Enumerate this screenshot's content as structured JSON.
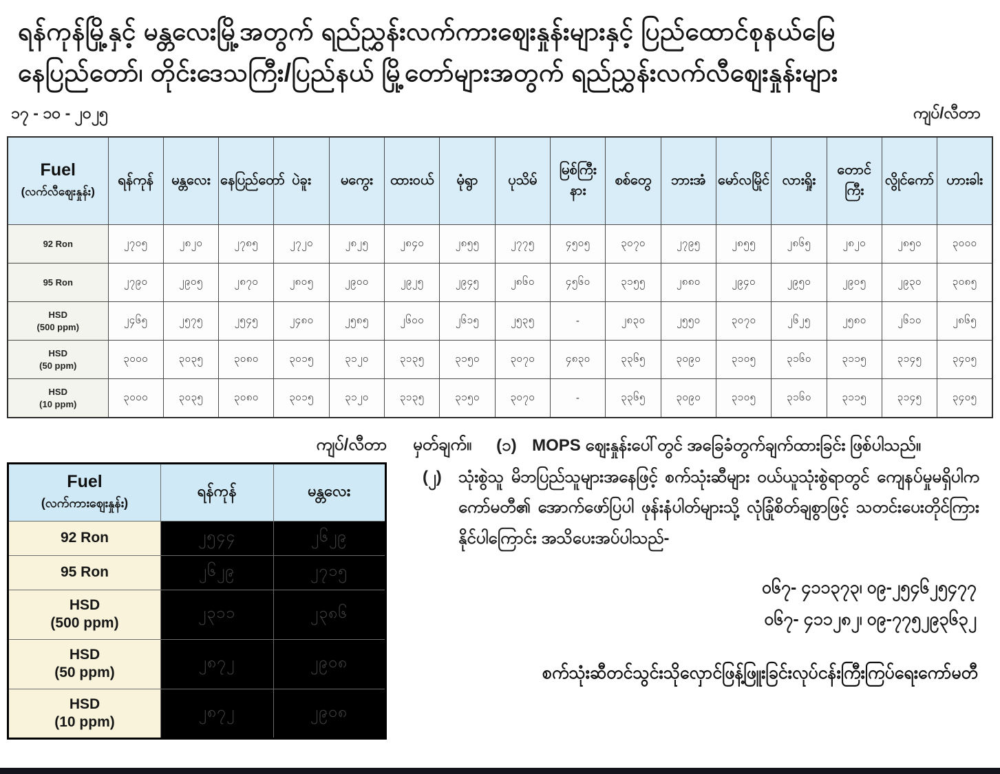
{
  "title": {
    "line1": "ရန်ကုန်မြို့နှင့် မန္တလေးမြို့အတွက် ရည်ညွှန်းလက်ကားဈေးနှုန်းများနှင့် ပြည်ထောင်စုနယ်မြေ",
    "line2": "နေပြည်တော်၊ တိုင်းဒေသကြီး/ပြည်နယ် မြို့တော်များအတွက် ရည်ညွှန်းလက်လီဈေးနှုန်းများ"
  },
  "date": "၁၇ - ၁၀ - ၂၀၂၅",
  "unit_label_top": "ကျပ်/လီတာ",
  "unit_label_bottom": "ကျပ်/လီတာ",
  "retail_table": {
    "fuel_header": {
      "title": "Fuel",
      "subtitle": "(လက်လီဈေးနှုန်း)"
    },
    "cities": [
      "ရန်ကုန်",
      "မန္တလေး",
      "နေပြည်တော်",
      "ပဲခူး",
      "မကွေး",
      "ထားဝယ်",
      "မုံရွာ",
      "ပုသိမ်",
      "မြစ်ကြီးနား",
      "စစ်တွေ",
      "ဘားအံ",
      "မော်လမြိုင်",
      "လားရှိုး",
      "တောင်ကြီး",
      "လွိုင်ကော်",
      "ဟားခါး"
    ],
    "rows": [
      {
        "label_line1": "92 Ron",
        "label_line2": "",
        "values": [
          "၂၇၀၅",
          "၂၈၂၀",
          "၂၇၈၅",
          "၂၇၂၀",
          "၂၈၂၅",
          "၂၈၄၀",
          "၂၈၅၅",
          "၂၇၇၅",
          "၄၅၀၅",
          "၃၀၇၀",
          "၂၇၉၅",
          "၂၈၅၅",
          "၂၈၆၅",
          "၂၈၂၀",
          "၂၈၅၀",
          "၃၀၀၀"
        ],
        "values_numeric": [
          2705,
          2820,
          2785,
          2720,
          2825,
          2840,
          2855,
          2775,
          4505,
          3070,
          2795,
          2855,
          2865,
          2820,
          2850,
          3000
        ]
      },
      {
        "label_line1": "95 Ron",
        "label_line2": "",
        "values": [
          "၂၇၉၀",
          "၂၉၀၅",
          "၂၈၇၀",
          "၂၈၀၅",
          "၂၉၀၀",
          "၂၉၂၅",
          "၂၉၄၅",
          "၂၈၆၀",
          "၄၅၆၀",
          "၃၁၅၅",
          "၂၈၈၀",
          "၂၉၄၀",
          "၂၉၅၀",
          "၂၉၀၅",
          "၂၉၃၀",
          "၃၀၈၅"
        ],
        "values_numeric": [
          2790,
          2905,
          2870,
          2805,
          2900,
          2925,
          2945,
          2860,
          4560,
          3155,
          2880,
          2940,
          2950,
          2905,
          2930,
          3085
        ]
      },
      {
        "label_line1": "HSD",
        "label_line2": "(500 ppm)",
        "values": [
          "၂၄၆၅",
          "၂၅၇၅",
          "၂၅၄၅",
          "၂၄၈၀",
          "၂၅၈၅",
          "၂၆၀၀",
          "၂၆၁၅",
          "၂၅၃၅",
          "-",
          "၂၈၃၀",
          "၂၅၅၀",
          "၃၀၇၀",
          "၂၆၂၅",
          "၂၅၈၀",
          "၂၆၁၀",
          "၂၈၆၅"
        ],
        "values_numeric": [
          2465,
          2575,
          2545,
          2480,
          2585,
          2600,
          2615,
          2535,
          null,
          2830,
          2550,
          3070,
          2625,
          2580,
          2610,
          2865
        ]
      },
      {
        "label_line1": "HSD",
        "label_line2": "(50 ppm)",
        "values": [
          "၃၀၀၀",
          "၃၀၃၅",
          "၃၀၈၀",
          "၃၀၁၅",
          "၃၁၂၀",
          "၃၁၃၅",
          "၃၁၅၀",
          "၃၀၇၀",
          "၄၈၃၀",
          "၃၃၆၅",
          "၃၀၉၀",
          "၃၁၀၅",
          "၃၁၆၀",
          "၃၁၁၅",
          "၃၁၄၅",
          "၃၄၀၅"
        ],
        "values_numeric": [
          3000,
          3035,
          3080,
          3015,
          3120,
          3135,
          3150,
          3070,
          4830,
          3365,
          3090,
          3105,
          3160,
          3115,
          3145,
          3405
        ]
      },
      {
        "label_line1": "HSD",
        "label_line2": "(10 ppm)",
        "values": [
          "၃၀၀၀",
          "၃၀၃၅",
          "၃၀၈၀",
          "၃၀၁၅",
          "၃၁၂၀",
          "၃၁၃၅",
          "၃၁၅၀",
          "၃၀၇၀",
          "-",
          "၃၃၆၅",
          "၃၀၉၀",
          "၃၁၀၅",
          "၃၁၆၀",
          "၃၁၁၅",
          "၃၁၄၅",
          "၃၄၀၅"
        ],
        "values_numeric": [
          3000,
          3035,
          3080,
          3015,
          3120,
          3135,
          3150,
          3070,
          null,
          3365,
          3090,
          3105,
          3160,
          3115,
          3145,
          3405
        ]
      }
    ]
  },
  "wholesale_table": {
    "fuel_header": {
      "title": "Fuel",
      "subtitle": "(လက်ကားဈေးနှုန်း)"
    },
    "columns": [
      "ရန်ကုန်",
      "မန္တလေး"
    ],
    "rows": [
      {
        "label_line1": "92 Ron",
        "label_line2": "",
        "values": [
          "၂၅၄၄",
          "၂၆၂၉"
        ],
        "values_numeric": [
          2544,
          2629
        ]
      },
      {
        "label_line1": "95 Ron",
        "label_line2": "",
        "values": [
          "၂၆၂၉",
          "၂၇၁၅"
        ],
        "values_numeric": [
          2629,
          2715
        ]
      },
      {
        "label_line1": "HSD",
        "label_line2": "(500 ppm)",
        "values": [
          "၂၃၁၁",
          "၂၃၈၆"
        ],
        "values_numeric": [
          2311,
          2386
        ]
      },
      {
        "label_line1": "HSD",
        "label_line2": "(50 ppm)",
        "values": [
          "၂၈၇၂",
          "၂၉၀၈"
        ],
        "values_numeric": [
          2872,
          2908
        ]
      },
      {
        "label_line1": "HSD",
        "label_line2": "(10 ppm)",
        "values": [
          "၂၈၇၂",
          "၂၉၀၈"
        ],
        "values_numeric": [
          2872,
          2908
        ]
      }
    ]
  },
  "notes": {
    "heading": "မှတ်ချက်။",
    "item1_num": "(၁)",
    "item1_text": "MOPS ဈေးနှုန်းပေါ်တွင် အခြေခံတွက်ချက်ထားခြင်း ဖြစ်ပါသည်။",
    "item2_num": "(၂)",
    "item2_text": "သုံးစွဲသူ မိဘပြည်သူများအနေဖြင့် စက်သုံးဆီများ ဝယ်ယူသုံးစွဲရာတွင် ကျေနပ်မှုမရှိပါက ကော်မတီ၏ အောက်ဖော်ပြပါ ဖုန်းနံပါတ်များသို့ လုံခြုံစိတ်ချစွာဖြင့် သတင်းပေးတိုင်ကြားနိုင်ပါကြောင်း အသိပေးအပ်ပါသည်-"
  },
  "phones": {
    "line1": "ဝ၆၇- ၄၁၁၃၇၃၊ ဝ၉-၂၅၄၆၂၅၄၇၇",
    "line2": "ဝ၆၇- ၄၁၁၂၈၂၊ ဝ၉-၇၇၅၂၉၃၆၃၂"
  },
  "committee": "စက်သုံးဆီတင်သွင်းသိုလှောင်ဖြန့်ဖြူးခြင်းလုပ်ငန်းကြီးကြပ်ရေးကော်မတီ",
  "colors": {
    "header_blue": "#d9edf8",
    "label_beige": "#f8f3da",
    "label_gray": "#f4f4ee",
    "value_cell_black": "#000000",
    "footer_bar": "#14141c"
  }
}
